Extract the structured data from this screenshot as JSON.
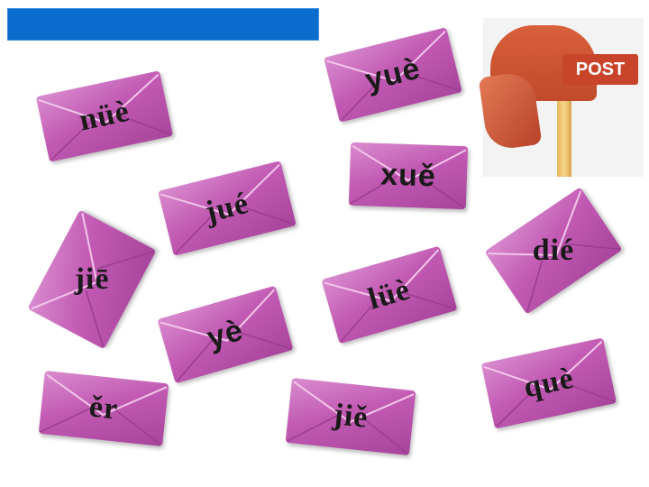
{
  "header": {
    "title": ""
  },
  "mailbox": {
    "sign_label": "POST"
  },
  "envelopes": [
    {
      "text": "nüè"
    },
    {
      "text": "yuè"
    },
    {
      "text": "xuě"
    },
    {
      "text": "jué"
    },
    {
      "text": "jiē"
    },
    {
      "text": "dié"
    },
    {
      "text": "lüè"
    },
    {
      "text": "yè"
    },
    {
      "text": "ěr"
    },
    {
      "text": "jiě"
    },
    {
      "text": "què"
    }
  ],
  "colors": {
    "envelope": "#c25ab3",
    "title_bar": "#0a6ccc",
    "mailbox": "#c8442a"
  }
}
